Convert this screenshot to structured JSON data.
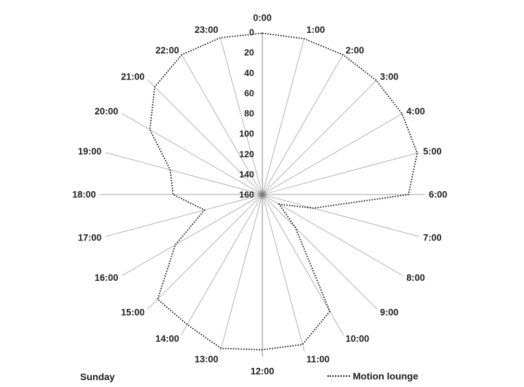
{
  "chart_data": {
    "type": "radar",
    "title": "",
    "categories": [
      "0:00",
      "1:00",
      "2:00",
      "3:00",
      "4:00",
      "5:00",
      "6:00",
      "7:00",
      "8:00",
      "9:00",
      "10:00",
      "11:00",
      "12:00",
      "13:00",
      "14:00",
      "15:00",
      "16:00",
      "17:00",
      "18:00",
      "19:00",
      "20:00",
      "21:00",
      "22:00",
      "23:00"
    ],
    "series": [
      {
        "name": "Motion lounge",
        "line_style": "dotted",
        "color": "#111111",
        "values": [
          1,
          1,
          1,
          1,
          1,
          2,
          16,
          108,
          141,
          114,
          27,
          7,
          7,
          3,
          12,
          14,
          61,
          101,
          72,
          66,
          32,
          10,
          1,
          0
        ]
      }
    ],
    "value_axis": {
      "min": 0,
      "max": 160,
      "tick_interval": 20,
      "direction": "reversed: 0 at outer edge, 160 at center",
      "tick_labels": [
        "0",
        "20",
        "40",
        "60",
        "80",
        "100",
        "120",
        "140",
        "160"
      ]
    },
    "grid": "24 radial spokes, no concentric rings",
    "legend_position": "bottom-right",
    "day_label": "Sunday",
    "colors": {
      "spoke": "#a6a6a6",
      "axis_line": "#b8b8b8",
      "series": "#111111",
      "label_text": "#1d1d1d",
      "background": "#ffffff"
    }
  }
}
